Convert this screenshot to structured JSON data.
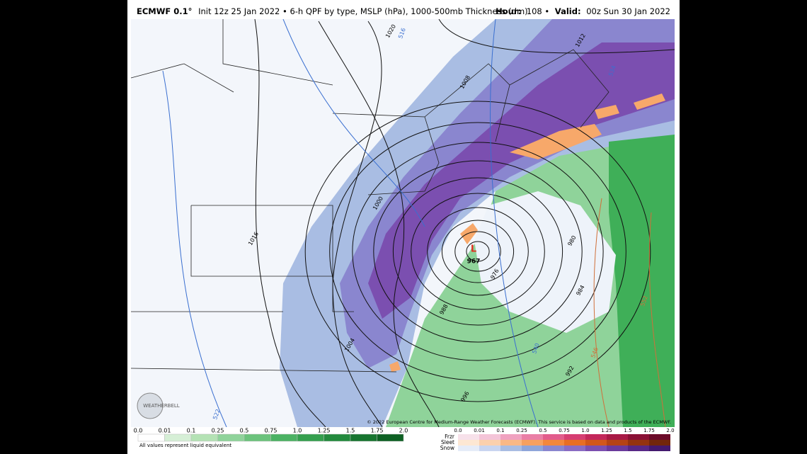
{
  "header": {
    "model": "ECMWF 0.1°",
    "description": "Init 12z 25 Jan 2022 • 6-h QPF by type, MSLP (hPa), 1000-500mb Thickness (dm)",
    "hour_label": "Hour:",
    "hour": "108 •",
    "valid_label": "Valid:",
    "valid": "00z Sun 30 Jan 2022"
  },
  "map": {
    "isobar_labels": [
      "1020",
      "1012",
      "1008",
      "1016",
      "1000",
      "976",
      "980",
      "984",
      "988",
      "1004",
      "992",
      "996"
    ],
    "thickness_labels": [
      "516",
      "534",
      "540",
      "546",
      "552",
      "522"
    ],
    "low": {
      "symbol": "L",
      "pressure": "967"
    },
    "credit": "© 2022 European Centre for Medium-Range Weather Forecasts (ECMWF). This service is based on data and products of the ECMWF.",
    "logo": "WEATHERBELL"
  },
  "legend": {
    "rain": {
      "ticks": [
        "0.0",
        "0.01",
        "0.1",
        "0.25",
        "0.5",
        "0.75",
        "1.0",
        "1.25",
        "1.5",
        "1.75",
        "2.0"
      ],
      "note": "All values represent liquid equivalent"
    },
    "mixed": {
      "types": [
        "Frzr",
        "Sleet",
        "Snow"
      ],
      "ticks": [
        "0.0",
        "0.01",
        "0.1",
        "0.25",
        "0.5",
        "0.75",
        "1.0",
        "1.25",
        "1.5",
        "1.75",
        "2.0"
      ]
    }
  }
}
